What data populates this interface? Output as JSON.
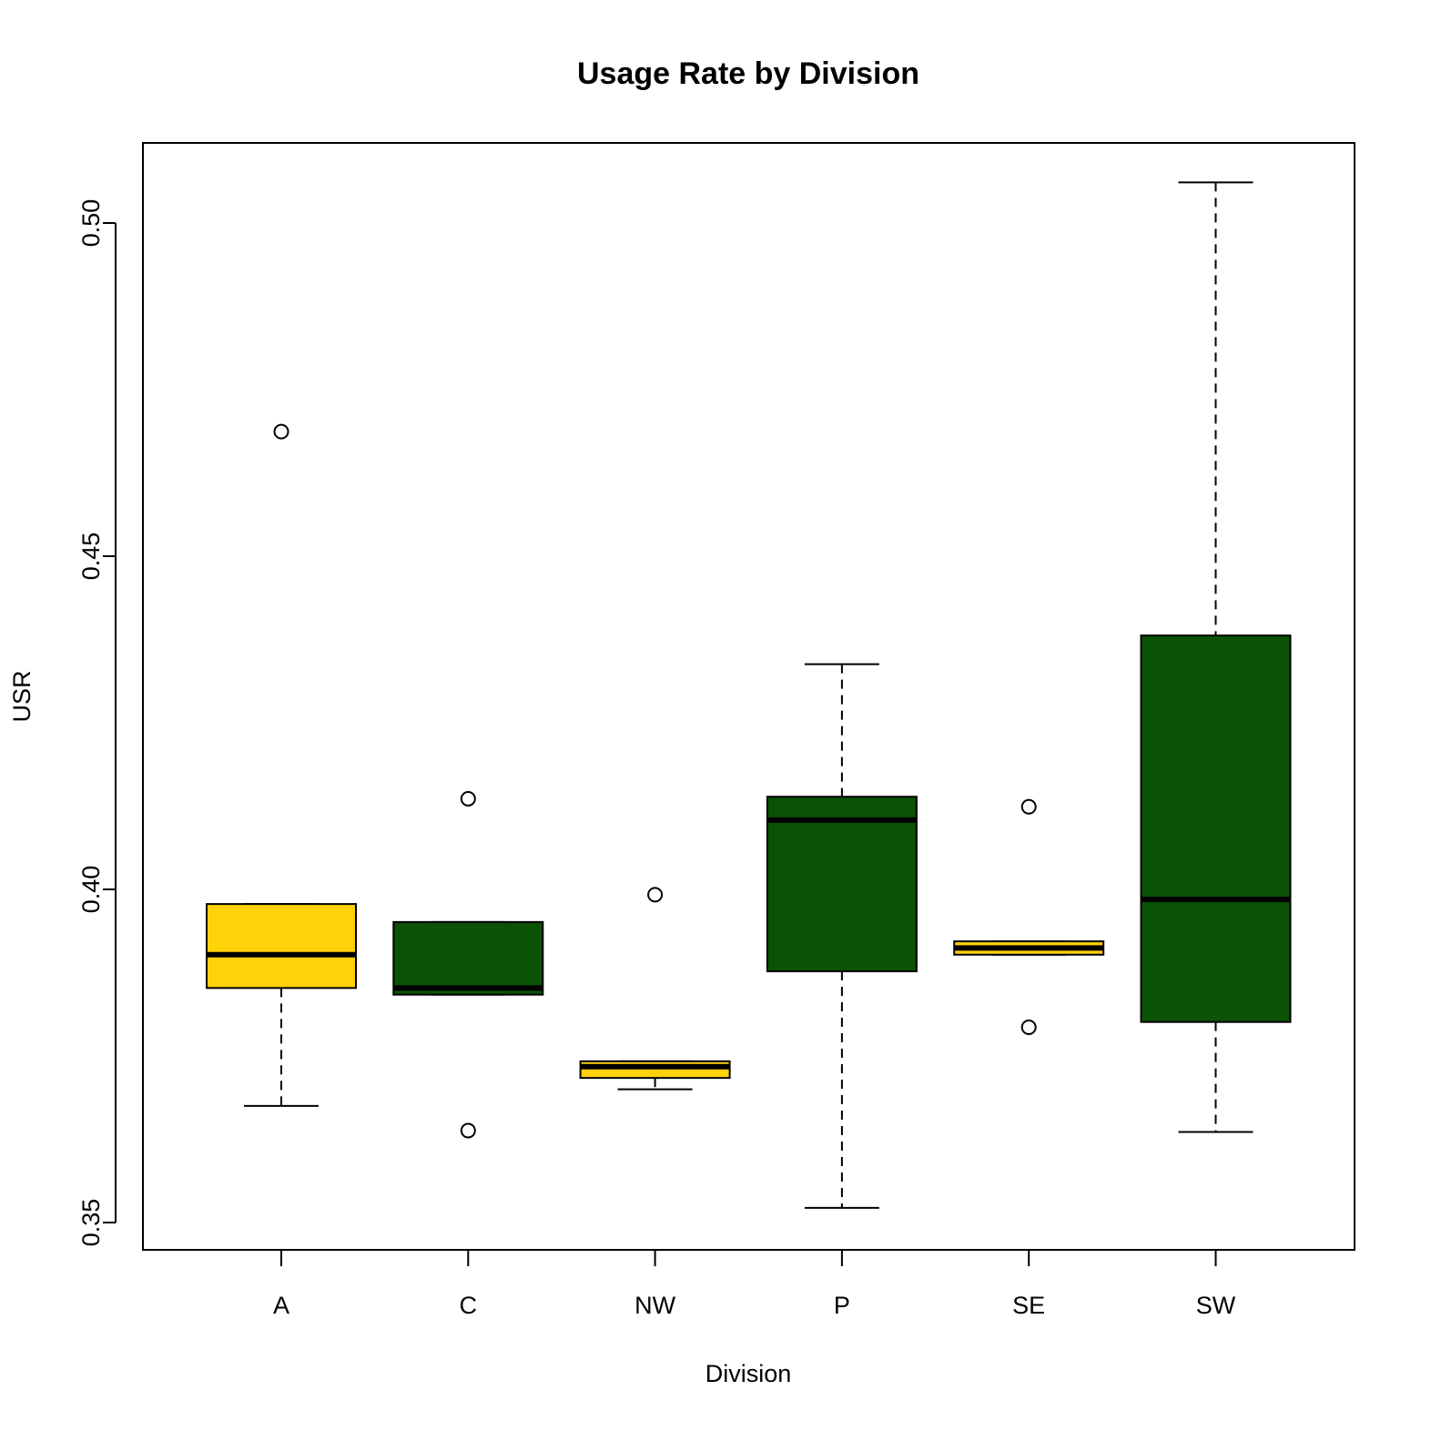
{
  "chart_data": {
    "type": "boxplot",
    "title": "Usage Rate by Division",
    "xlabel": "Division",
    "ylabel": "USR",
    "categories": [
      "A",
      "C",
      "NW",
      "P",
      "SE",
      "SW"
    ],
    "colors": {
      "A": "#FFD20A",
      "C": "#0B5204",
      "NW": "#FFD20A",
      "P": "#0B5204",
      "SE": "#FFD20A",
      "SW": "#0B5204"
    },
    "boxes": [
      {
        "name": "A",
        "whisker_low": 0.3675,
        "q1": 0.3852,
        "median": 0.3902,
        "q3": 0.3978,
        "whisker_high": 0.3978,
        "outliers": [
          0.4687
        ]
      },
      {
        "name": "C",
        "whisker_low": 0.3842,
        "q1": 0.3842,
        "median": 0.3852,
        "q3": 0.3951,
        "whisker_high": 0.3951,
        "outliers": [
          0.3638,
          0.4136
        ]
      },
      {
        "name": "NW",
        "whisker_low": 0.37,
        "q1": 0.3717,
        "median": 0.3734,
        "q3": 0.3742,
        "whisker_high": 0.3742,
        "outliers": [
          0.3992
        ]
      },
      {
        "name": "P",
        "whisker_low": 0.3522,
        "q1": 0.3877,
        "median": 0.4104,
        "q3": 0.4139,
        "whisker_high": 0.4338,
        "outliers": []
      },
      {
        "name": "SE",
        "whisker_low": 0.3902,
        "q1": 0.3902,
        "median": 0.3912,
        "q3": 0.3922,
        "whisker_high": 0.3922,
        "outliers": [
          0.3793,
          0.4124
        ]
      },
      {
        "name": "SW",
        "whisker_low": 0.3636,
        "q1": 0.3801,
        "median": 0.3985,
        "q3": 0.4381,
        "whisker_high": 0.5061,
        "outliers": []
      }
    ],
    "yticks": [
      "0.35",
      "0.40",
      "0.45",
      "0.50"
    ],
    "ylim": [
      0.346,
      0.512
    ],
    "grid": false,
    "legend": "none"
  }
}
